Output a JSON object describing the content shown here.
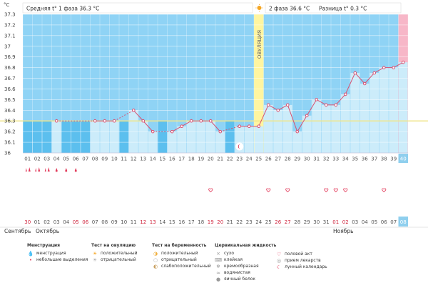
{
  "chart_data": {
    "type": "line",
    "y_unit": "°C",
    "ylim": [
      36.0,
      37.3
    ],
    "y_ticks": [
      "36",
      "36.1",
      "36.2",
      "36.3",
      "36.4",
      "36.5",
      "36.6",
      "36.7",
      "36.8",
      "36.9",
      "37",
      "37.1",
      "37.2",
      "37.3"
    ],
    "cycle_days": [
      "01",
      "02",
      "03",
      "04",
      "05",
      "06",
      "07",
      "08",
      "09",
      "10",
      "11",
      "12",
      "13",
      "14",
      "15",
      "16",
      "17",
      "18",
      "19",
      "20",
      "21",
      "22",
      "23",
      "24",
      "25",
      "26",
      "27",
      "28",
      "29",
      "30",
      "31",
      "32",
      "33",
      "34",
      "35",
      "36",
      "37",
      "38",
      "39",
      "40"
    ],
    "dates": [
      "30",
      "01",
      "02",
      "03",
      "04",
      "05",
      "06",
      "07",
      "08",
      "09",
      "10",
      "11",
      "12",
      "13",
      "14",
      "15",
      "16",
      "17",
      "18",
      "19",
      "20",
      "21",
      "22",
      "23",
      "24",
      "25",
      "26",
      "27",
      "28",
      "29",
      "30",
      "31",
      "01",
      "02",
      "03",
      "04",
      "05",
      "06",
      "07",
      "08"
    ],
    "date_colors": [
      "#d0243c",
      "#555",
      "#555",
      "#555",
      "#555",
      "#d0243c",
      "#d0243c",
      "#555",
      "#555",
      "#555",
      "#555",
      "#555",
      "#d0243c",
      "#d0243c",
      "#555",
      "#555",
      "#555",
      "#555",
      "#555",
      "#d0243c",
      "#d0243c",
      "#555",
      "#555",
      "#555",
      "#555",
      "#555",
      "#d0243c",
      "#d0243c",
      "#555",
      "#555",
      "#555",
      "#555",
      "#d0243c",
      "#d0243c",
      "#555",
      "#555",
      "#555",
      "#555",
      "#555",
      "#555"
    ],
    "temperatures": [
      null,
      null,
      null,
      36.3,
      null,
      null,
      null,
      36.3,
      36.3,
      36.3,
      null,
      36.4,
      36.3,
      36.2,
      null,
      36.2,
      36.25,
      36.3,
      36.3,
      36.3,
      36.2,
      null,
      36.25,
      36.25,
      36.25,
      36.45,
      36.4,
      36.45,
      36.2,
      36.35,
      36.5,
      36.45,
      36.45,
      36.55,
      36.75,
      36.65,
      36.75,
      36.8,
      36.8,
      36.85
    ],
    "coverline": 36.3,
    "ovulation_day": 25,
    "future_days": [
      40
    ],
    "today_day": 40,
    "gap_bars": [
      1,
      2,
      3,
      5,
      6,
      7,
      11,
      15,
      22
    ],
    "sex_days": [
      20,
      26,
      28,
      32,
      33,
      34,
      38
    ],
    "menstruation_days": [
      1,
      2,
      3
    ],
    "spotting_days": [
      4,
      5,
      6
    ],
    "lunar_day": 23
  },
  "texts": {
    "phase1_label": "Средняя t° 1 фаза",
    "phase1_value": "36.3 °C",
    "phase2_label": "2 фаза",
    "phase2_value": "36.6 °C",
    "diff_label": "Разница t°",
    "diff_value": "0.3 °C",
    "ovulation_label": "ОВУЛЯЦИЯ",
    "month_sep": "Сентябрь",
    "month_oct": "Октябрь",
    "month_nov": "Ноябрь"
  },
  "legend": {
    "menstruation": {
      "title": "Менструация",
      "items": [
        "менструация",
        "небольшие выделения"
      ]
    },
    "ovulation_test": {
      "title": "Тест на овуляцию",
      "items": [
        "положительный",
        "отрицательный"
      ]
    },
    "pregnancy_test": {
      "title": "Тест на беременность",
      "items": [
        "положительный",
        "отрицательный",
        "слабоположительный"
      ]
    },
    "cervical": {
      "title": "Цервикальная жидкость",
      "items": [
        "сухо",
        "клейкая",
        "кремообразная",
        "водянистая",
        "яичный белок"
      ]
    },
    "other": {
      "items": [
        "половой акт",
        "прием лекарств",
        "лунный календарь"
      ]
    }
  },
  "colors": {
    "bar": "#ccecfa",
    "sky": "#8fd3f5",
    "gap": "#5cbfee",
    "ovulation": "#fff5a0",
    "future": "#f7b7c8",
    "today": "#8fcfee",
    "line": "#d85070",
    "accent": "#e23a5a",
    "coverline": "#f0e68c"
  }
}
